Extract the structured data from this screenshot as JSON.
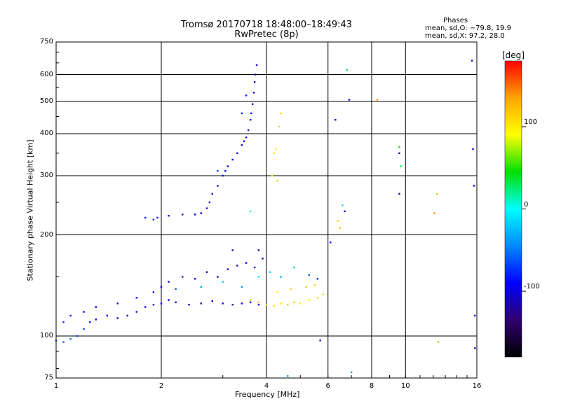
{
  "chart_data": {
    "type": "scatter",
    "title": "Tromsø 20170718 18:48:00–18:49:43",
    "subtitle": "RwPretec (8p)",
    "xlabel": "Frequency [MHz]",
    "ylabel": "Stationary phase Virtual Height [km]",
    "xscale": "log",
    "yscale": "log",
    "xlim": [
      1,
      16
    ],
    "ylim": [
      75,
      750
    ],
    "xticks": [
      1,
      2,
      4,
      6,
      8,
      10,
      16
    ],
    "yticks": [
      75,
      100,
      200,
      300,
      400,
      500,
      600,
      750
    ],
    "grid": true,
    "stats": {
      "heading": "Phases",
      "line_o": "mean, sd,O: −79.8, 19.9",
      "line_x": "mean, sd,X:  97.2, 28.0"
    },
    "colorbar": {
      "label": "[deg]",
      "ticks": [
        100,
        0,
        -100
      ],
      "range": [
        -180,
        180
      ],
      "colors": [
        "#ff0000",
        "#ffa500",
        "#ffff00",
        "#00e000",
        "#00ffff",
        "#0088ff",
        "#0000ff",
        "#300070",
        "#000000"
      ]
    },
    "series": [
      {
        "role": "O-mode F-region trace",
        "points": [
          [
            1.8,
            225,
            -90
          ],
          [
            1.9,
            222,
            -110
          ],
          [
            1.95,
            225,
            -100
          ],
          [
            2.1,
            228,
            -95
          ],
          [
            2.3,
            230,
            -100
          ],
          [
            2.5,
            230,
            -90
          ],
          [
            2.6,
            232,
            -110
          ],
          [
            2.7,
            240,
            -100
          ],
          [
            2.75,
            250,
            -95
          ],
          [
            2.8,
            265,
            -105
          ],
          [
            2.9,
            280,
            -110
          ],
          [
            3.0,
            300,
            -100
          ],
          [
            3.05,
            310,
            -90
          ],
          [
            3.1,
            320,
            -110
          ],
          [
            3.2,
            335,
            -100
          ],
          [
            3.3,
            350,
            -95
          ],
          [
            3.4,
            370,
            -110
          ],
          [
            3.45,
            380,
            -100
          ],
          [
            3.5,
            390,
            -90
          ],
          [
            3.55,
            410,
            -110
          ],
          [
            3.6,
            440,
            -100
          ],
          [
            3.62,
            460,
            -95
          ],
          [
            3.65,
            490,
            -110
          ],
          [
            3.68,
            530,
            -100
          ],
          [
            3.7,
            570,
            -105
          ],
          [
            3.72,
            600,
            -110
          ],
          [
            3.75,
            640,
            -100
          ],
          [
            2.9,
            310,
            -70
          ],
          [
            3.4,
            460,
            -90
          ],
          [
            3.5,
            520,
            -85
          ]
        ]
      },
      {
        "role": "X-mode F-region trace",
        "points": [
          [
            4.2,
            350,
            110
          ],
          [
            4.25,
            360,
            100
          ],
          [
            4.35,
            420,
            115
          ],
          [
            4.4,
            460,
            105
          ],
          [
            4.3,
            290,
            120
          ],
          [
            4.15,
            300,
            95
          ],
          [
            3.6,
            235,
            -10
          ]
        ]
      },
      {
        "role": "O-mode E/Es echoes",
        "points": [
          [
            1.0,
            97,
            -60
          ],
          [
            1.05,
            96,
            -60
          ],
          [
            1.1,
            98,
            -55
          ],
          [
            1.15,
            100,
            -70
          ],
          [
            1.2,
            105,
            -65
          ],
          [
            1.25,
            110,
            -80
          ],
          [
            1.3,
            112,
            -90
          ],
          [
            1.4,
            115,
            -95
          ],
          [
            1.5,
            113,
            -100
          ],
          [
            1.6,
            115,
            -110
          ],
          [
            1.7,
            118,
            -100
          ],
          [
            1.8,
            122,
            -95
          ],
          [
            1.9,
            124,
            -110
          ],
          [
            2.0,
            125,
            -100
          ],
          [
            2.1,
            128,
            -90
          ],
          [
            2.2,
            126,
            -110
          ],
          [
            2.4,
            124,
            -100
          ],
          [
            2.6,
            125,
            -120
          ],
          [
            2.8,
            127,
            -100
          ],
          [
            3.0,
            125,
            -110
          ],
          [
            3.2,
            124,
            -120
          ],
          [
            3.4,
            125,
            -100
          ],
          [
            3.6,
            126,
            -110
          ],
          [
            3.8,
            124,
            -95
          ],
          [
            1.05,
            110,
            -70
          ],
          [
            1.1,
            115,
            -80
          ],
          [
            1.2,
            118,
            -90
          ],
          [
            1.3,
            122,
            -100
          ],
          [
            1.5,
            125,
            -110
          ],
          [
            1.7,
            130,
            -100
          ],
          [
            1.9,
            135,
            -90
          ],
          [
            2.0,
            140,
            -110
          ],
          [
            2.1,
            145,
            -100
          ],
          [
            2.3,
            150,
            -80
          ],
          [
            2.5,
            148,
            -100
          ],
          [
            2.7,
            155,
            -120
          ],
          [
            2.9,
            150,
            -110
          ],
          [
            3.1,
            158,
            -95
          ],
          [
            3.3,
            162,
            -100
          ],
          [
            3.5,
            165,
            -90
          ],
          [
            3.7,
            160,
            -100
          ],
          [
            3.9,
            170,
            -110
          ],
          [
            2.2,
            138,
            -60
          ],
          [
            2.6,
            140,
            -30
          ],
          [
            3.0,
            145,
            -20
          ],
          [
            3.4,
            140,
            -40
          ],
          [
            3.8,
            150,
            -10
          ],
          [
            4.1,
            155,
            -15
          ],
          [
            4.4,
            150,
            -30
          ],
          [
            4.8,
            160,
            -20
          ],
          [
            5.3,
            152,
            -60
          ],
          [
            5.6,
            148,
            -80
          ],
          [
            3.2,
            180,
            -120
          ],
          [
            3.8,
            180,
            -100
          ]
        ]
      },
      {
        "role": "X-mode E/Es echoes",
        "points": [
          [
            4.0,
            124,
            110
          ],
          [
            4.2,
            123,
            105
          ],
          [
            4.4,
            125,
            100
          ],
          [
            4.6,
            124,
            115
          ],
          [
            4.8,
            126,
            110
          ],
          [
            5.0,
            125,
            100
          ],
          [
            5.3,
            128,
            95
          ],
          [
            5.6,
            130,
            110
          ],
          [
            5.8,
            133,
            105
          ],
          [
            4.3,
            135,
            100
          ],
          [
            4.7,
            138,
            110
          ],
          [
            5.2,
            140,
            120
          ],
          [
            5.5,
            142,
            105
          ],
          [
            3.6,
            128,
            115
          ],
          [
            3.8,
            126,
            120
          ]
        ]
      },
      {
        "role": "Scattered echoes",
        "points": [
          [
            6.1,
            190,
            -95
          ],
          [
            6.4,
            220,
            110
          ],
          [
            6.5,
            210,
            130
          ],
          [
            6.6,
            245,
            -10
          ],
          [
            6.7,
            235,
            -110
          ],
          [
            6.8,
            620,
            30
          ],
          [
            6.9,
            505,
            -110
          ],
          [
            8.3,
            505,
            140
          ],
          [
            9.6,
            365,
            40
          ],
          [
            9.6,
            350,
            -120
          ],
          [
            9.7,
            320,
            30
          ],
          [
            9.6,
            265,
            -110
          ],
          [
            6.3,
            440,
            -90
          ],
          [
            12.1,
            232,
            140
          ],
          [
            12.3,
            265,
            120
          ],
          [
            12.4,
            96,
            130
          ],
          [
            15.5,
            660,
            -115
          ],
          [
            15.6,
            360,
            -90
          ],
          [
            15.7,
            280,
            -110
          ],
          [
            15.8,
            115,
            -110
          ],
          [
            15.8,
            92,
            -120
          ],
          [
            5.7,
            97,
            -110
          ],
          [
            7.0,
            78,
            -40
          ],
          [
            4.6,
            76,
            -30
          ]
        ]
      }
    ]
  }
}
